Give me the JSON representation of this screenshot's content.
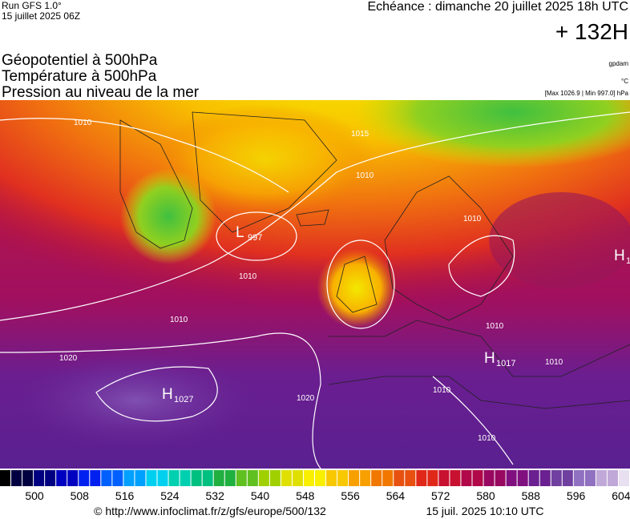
{
  "header": {
    "run": "Run GFS 1.0°",
    "run_date": "15 juillet 2025 06Z",
    "echeance": "Echéance : dimanche 20 juillet 2025 18h UTC",
    "lead": "+ 132H",
    "titles": [
      "Géopotentiel à 500hPa",
      "Température à 500hPa",
      "Pression au niveau de la mer"
    ],
    "units": [
      "gpdam",
      "°C",
      "[Max 1026.9 | Min 997.0] hPa"
    ]
  },
  "map": {
    "isobars": [
      {
        "label": "1010",
        "pos": "greenland-west"
      },
      {
        "label": "1015",
        "pos": "norway-sea"
      },
      {
        "label": "1010",
        "pos": "iceland-east"
      },
      {
        "label": "1010",
        "pos": "atlantic-mid"
      },
      {
        "label": "1010",
        "pos": "atlantic-west"
      },
      {
        "label": "1020",
        "pos": "azores-west"
      },
      {
        "label": "1020",
        "pos": "iberia-west"
      },
      {
        "label": "1010",
        "pos": "scandinavia"
      },
      {
        "label": "1010",
        "pos": "balkans"
      },
      {
        "label": "1010",
        "pos": "greece"
      },
      {
        "label": "1010",
        "pos": "africa"
      },
      {
        "label": "1010",
        "pos": "mediterranean"
      }
    ],
    "centers": [
      {
        "type": "L",
        "value": "997"
      },
      {
        "type": "H",
        "value": "1027"
      },
      {
        "type": "H",
        "value": "1017"
      },
      {
        "type": "H",
        "value": "1"
      }
    ]
  },
  "legend": {
    "ticks": [
      "500",
      "508",
      "516",
      "524",
      "532",
      "540",
      "548",
      "556",
      "564",
      "572",
      "580",
      "588",
      "596",
      "604"
    ]
  },
  "footer": {
    "url": "© http://www.infoclimat.fr/z/gfs/europe/500/132",
    "timestamp": "15 juil. 2025 10:10 UTC"
  }
}
